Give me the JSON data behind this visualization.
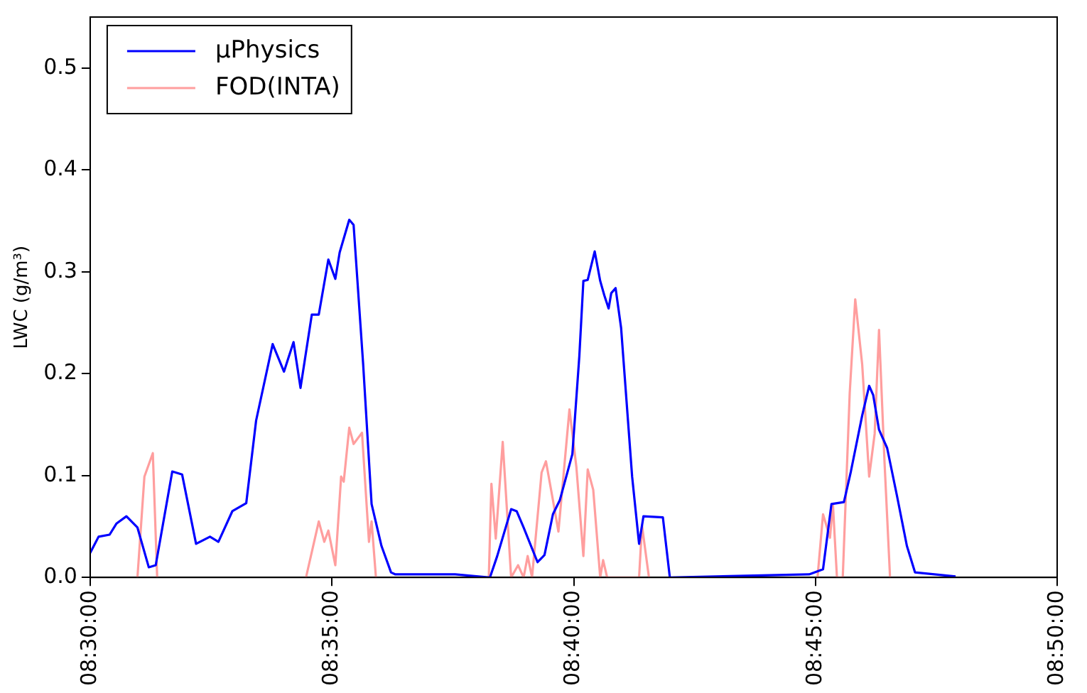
{
  "chart_data": {
    "type": "line",
    "ylabel": "LWC (g/m³)",
    "xlim": [
      8.5,
      8.8333
    ],
    "xticks": [
      {
        "value": 8.5,
        "label": "08:30:00"
      },
      {
        "value": 8.5833,
        "label": "08:35:00"
      },
      {
        "value": 8.6667,
        "label": "08:40:00"
      },
      {
        "value": 8.75,
        "label": "08:45:00"
      },
      {
        "value": 8.8333,
        "label": "08:50:00"
      }
    ],
    "ylim": [
      0,
      0.55
    ],
    "yticks": [
      {
        "value": 0,
        "label": "0.0"
      },
      0.1,
      0.2,
      0.3,
      0.4,
      0.5
    ],
    "legend": "top left",
    "marker": "none",
    "line_style": "solid",
    "grid": false,
    "series": [
      {
        "name": "μPhysics",
        "color": "#0000ff",
        "x": [
          8.5,
          8.5029,
          8.5067,
          8.5091,
          8.5125,
          8.5163,
          8.5202,
          8.5226,
          8.5283,
          8.5317,
          8.5365,
          8.5413,
          8.5442,
          8.549,
          8.5538,
          8.5572,
          8.5629,
          8.5668,
          8.5701,
          8.5725,
          8.5764,
          8.5788,
          8.5821,
          8.5845,
          8.586,
          8.5893,
          8.5908,
          8.5941,
          8.597,
          8.6004,
          8.6037,
          8.6052,
          8.6258,
          8.6378,
          8.6403,
          8.6451,
          8.647,
          8.6494,
          8.6542,
          8.6566,
          8.6595,
          8.6619,
          8.6662,
          8.6686,
          8.67,
          8.6715,
          8.6739,
          8.6758,
          8.6772,
          8.6787,
          8.6796,
          8.6811,
          8.683,
          8.6868,
          8.6892,
          8.6907,
          8.6974,
          8.6998,
          8.7478,
          8.7526,
          8.7555,
          8.7598,
          8.7622,
          8.7661,
          8.7685,
          8.7699,
          8.7719,
          8.7747,
          8.7781,
          8.7815,
          8.7843,
          8.7983
        ],
        "values": [
          0.024,
          0.04,
          0.042,
          0.053,
          0.06,
          0.049,
          0.01,
          0.012,
          0.104,
          0.101,
          0.033,
          0.04,
          0.035,
          0.065,
          0.073,
          0.154,
          0.229,
          0.202,
          0.231,
          0.186,
          0.258,
          0.258,
          0.312,
          0.293,
          0.319,
          0.351,
          0.346,
          0.209,
          0.072,
          0.031,
          0.005,
          0.003,
          0.003,
          0,
          0.021,
          0.067,
          0.065,
          0.049,
          0.015,
          0.022,
          0.062,
          0.076,
          0.121,
          0.217,
          0.291,
          0.292,
          0.32,
          0.291,
          0.277,
          0.264,
          0.279,
          0.284,
          0.245,
          0.099,
          0.033,
          0.06,
          0.059,
          0,
          0.003,
          0.008,
          0.072,
          0.074,
          0.104,
          0.159,
          0.188,
          0.179,
          0.145,
          0.127,
          0.08,
          0.031,
          0.005,
          0.001
        ]
      },
      {
        "name": "FOD(INTA)",
        "color": "#ff9e9e",
        "x": [
          8.5163,
          8.5187,
          8.5216,
          8.5231,
          8.55,
          8.5744,
          8.5788,
          8.5807,
          8.5821,
          8.5845,
          8.5865,
          8.5874,
          8.5893,
          8.5908,
          8.5937,
          8.5961,
          8.597,
          8.5985,
          8.62,
          8.6374,
          8.6383,
          8.6398,
          8.6422,
          8.6451,
          8.6475,
          8.6494,
          8.6508,
          8.6523,
          8.6556,
          8.6571,
          8.6595,
          8.6614,
          8.6652,
          8.6676,
          8.67,
          8.6715,
          8.6734,
          8.6758,
          8.6768,
          8.6782,
          8.6892,
          8.6902,
          8.6926,
          8.72,
          8.7507,
          8.7526,
          8.755,
          8.756,
          8.7574,
          8.7594,
          8.7618,
          8.7637,
          8.7661,
          8.7685,
          8.7704,
          8.7719,
          8.7738,
          8.7757
        ],
        "values": [
          0,
          0.099,
          0.122,
          0,
          null,
          0,
          0.055,
          0.035,
          0.046,
          0.012,
          0.099,
          0.094,
          0.147,
          0.131,
          0.142,
          0.035,
          0.055,
          0,
          null,
          0,
          0.092,
          0.038,
          0.133,
          0,
          0.012,
          0,
          0.021,
          0,
          0.103,
          0.114,
          0.076,
          0.045,
          0.165,
          0.108,
          0.021,
          0.106,
          0.086,
          0,
          0.017,
          0,
          0,
          0.051,
          0,
          null,
          0,
          0.062,
          0.039,
          0.072,
          0,
          0,
          0.181,
          0.273,
          0.209,
          0.099,
          0.141,
          0.243,
          0.113,
          0
        ]
      }
    ]
  }
}
